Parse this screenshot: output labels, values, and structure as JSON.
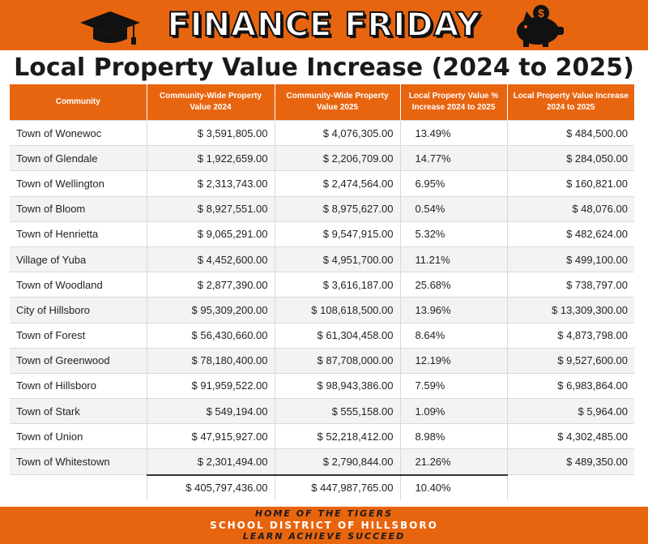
{
  "banner": {
    "title": "FINANCE FRIDAY"
  },
  "heading": "Local Property Value Increase (2024 to 2025)",
  "table": {
    "headers": [
      "Community",
      "Community-Wide Property Value 2024",
      "Community-Wide Property Value 2025",
      "Local Property Value % Increase 2024 to 2025",
      "Local Property Value Increase 2024 to 2025"
    ],
    "rows": [
      [
        "Town of Wonewoc",
        "$ 3,591,805.00",
        "$ 4,076,305.00",
        "13.49%",
        "$ 484,500.00"
      ],
      [
        "Town of Glendale",
        "$ 1,922,659.00",
        "$ 2,206,709.00",
        "14.77%",
        "$ 284,050.00"
      ],
      [
        "Town of Wellington",
        "$ 2,313,743.00",
        "$ 2,474,564.00",
        "6.95%",
        "$ 160,821.00"
      ],
      [
        "Town of Bloom",
        "$ 8,927,551.00",
        "$ 8,975,627.00",
        "0.54%",
        "$ 48,076.00"
      ],
      [
        "Town of Henrietta",
        "$ 9,065,291.00",
        "$ 9,547,915.00",
        "5.32%",
        "$ 482,624.00"
      ],
      [
        "Village of Yuba",
        "$ 4,452,600.00",
        "$ 4,951,700.00",
        "11.21%",
        "$ 499,100.00"
      ],
      [
        "Town of Woodland",
        "$ 2,877,390.00",
        "$ 3,616,187.00",
        "25.68%",
        "$ 738,797.00"
      ],
      [
        "City of Hillsboro",
        "$ 95,309,200.00",
        "$ 108,618,500.00",
        "13.96%",
        "$ 13,309,300.00"
      ],
      [
        "Town of Forest",
        "$ 56,430,660.00",
        "$ 61,304,458.00",
        "8.64%",
        "$ 4,873,798.00"
      ],
      [
        "Town of Greenwood",
        "$ 78,180,400.00",
        "$ 87,708,000.00",
        "12.19%",
        "$ 9,527,600.00"
      ],
      [
        "Town of Hillsboro",
        "$ 91,959,522.00",
        "$ 98,943,386.00",
        "7.59%",
        "$ 6,983,864.00"
      ],
      [
        "Town of Stark",
        "$ 549,194.00",
        "$ 555,158.00",
        "1.09%",
        "$ 5,964.00"
      ],
      [
        "Town of Union",
        "$ 47,915,927.00",
        "$ 52,218,412.00",
        "8.98%",
        "$ 4,302,485.00"
      ],
      [
        "Town of Whitestown",
        "$ 2,301,494.00",
        "$ 2,790,844.00",
        "21.26%",
        "$ 489,350.00"
      ]
    ],
    "total": [
      "",
      "$ 405,797,436.00",
      "$ 447,987,765.00",
      "10.40%",
      ""
    ]
  },
  "footer": {
    "line1": "HOME OF THE TIGERS",
    "line2": "SCHOOL DISTRICT OF HILLSBORO",
    "line3": "LEARN ACHIEVE SUCCEED"
  },
  "colors": {
    "accent": "#e8650f",
    "text": "#1a1a1a",
    "row_alt": "#f3f3f5"
  },
  "icons": [
    "graduation-cap-icon",
    "piggy-bank-icon",
    "dollar-coin-icon"
  ]
}
